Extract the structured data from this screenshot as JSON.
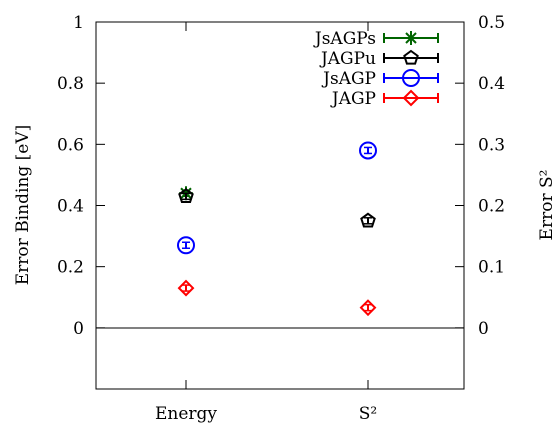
{
  "chart_data": {
    "type": "scatter",
    "categories": [
      "Energy",
      "S²"
    ],
    "left_axis": {
      "label": "Error Binding [eV]",
      "ylim": [
        -0.2,
        1.0
      ],
      "ticks": [
        0,
        0.2,
        0.4,
        0.6,
        0.8,
        1
      ],
      "tick_labels": [
        "0",
        "0.2",
        "0.4",
        "0.6",
        "0.8",
        "1"
      ]
    },
    "right_axis": {
      "label": "Error S²",
      "ylim": [
        -0.1,
        0.5
      ],
      "ticks": [
        0,
        0.1,
        0.2,
        0.3,
        0.4,
        0.5
      ],
      "tick_labels": [
        "0",
        "0.1",
        "0.2",
        "0.3",
        "0.4",
        "0.5"
      ]
    },
    "series": [
      {
        "name": "JsAGPs",
        "color": "#006400",
        "marker": "star",
        "points": [
          {
            "category": "Energy",
            "axis": "left",
            "value": 0.44
          }
        ]
      },
      {
        "name": "JAGPu",
        "color": "#000000",
        "marker": "pentagon",
        "points": [
          {
            "category": "Energy",
            "axis": "left",
            "value": 0.43
          },
          {
            "category": "S²",
            "axis": "right",
            "value": 0.175
          }
        ]
      },
      {
        "name": "JsAGP",
        "color": "#0000ff",
        "marker": "circle",
        "points": [
          {
            "category": "Energy",
            "axis": "left",
            "value": 0.27
          },
          {
            "category": "S²",
            "axis": "right",
            "value": 0.29
          }
        ]
      },
      {
        "name": "JAGP",
        "color": "#ff0000",
        "marker": "diamond",
        "points": [
          {
            "category": "Energy",
            "axis": "left",
            "value": 0.13
          },
          {
            "category": "S²",
            "axis": "right",
            "value": 0.033
          }
        ]
      }
    ],
    "zero_line": true,
    "grid": false,
    "legend_position": "top-right"
  }
}
